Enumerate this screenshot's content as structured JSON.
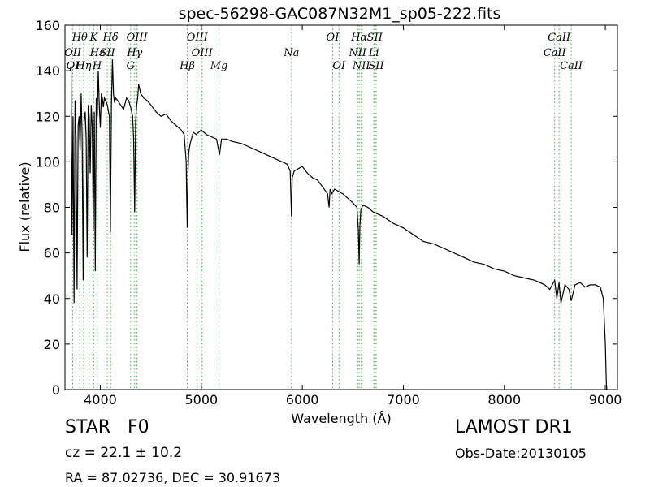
{
  "chart_data": {
    "type": "line",
    "title": "spec-56298-GAC087N32M1_sp05-222.fits",
    "xlabel": "Wavelength (Å)",
    "ylabel": "Flux (relative)",
    "xlim": [
      3650,
      9120
    ],
    "ylim": [
      0,
      160
    ],
    "xticks": [
      4000,
      5000,
      6000,
      7000,
      8000,
      9000
    ],
    "yticks": [
      0,
      20,
      40,
      60,
      80,
      100,
      120,
      140,
      160
    ],
    "grid": false,
    "line_color": "#000000",
    "marker_color": "#44aa44",
    "series": [
      {
        "x": [
          3700,
          3710,
          3720,
          3730,
          3740,
          3750,
          3760,
          3770,
          3780,
          3790,
          3800,
          3810,
          3820,
          3830,
          3840,
          3850,
          3860,
          3870,
          3880,
          3890,
          3900,
          3910,
          3920,
          3930,
          3940,
          3950,
          3960,
          3970,
          3980,
          3990,
          4000,
          4010,
          4020,
          4030,
          4040,
          4050,
          4060,
          4070,
          4080,
          4090,
          4100,
          4110,
          4120,
          4130,
          4140,
          4150,
          4170,
          4200,
          4230,
          4260,
          4280,
          4300,
          4320,
          4330,
          4340,
          4350,
          4360,
          4370,
          4380,
          4400,
          4430,
          4460,
          4500,
          4550,
          4600,
          4650,
          4700,
          4750,
          4800,
          4830,
          4850,
          4855,
          4861,
          4868,
          4875,
          4890,
          4920,
          4950,
          5000,
          5050,
          5100,
          5150,
          5180,
          5200,
          5250,
          5300,
          5400,
          5500,
          5600,
          5700,
          5800,
          5850,
          5880,
          5893,
          5900,
          5920,
          5960,
          6000,
          6050,
          6100,
          6150,
          6200,
          6250,
          6265,
          6275,
          6290,
          6320,
          6360,
          6400,
          6450,
          6500,
          6540,
          6555,
          6563,
          6570,
          6580,
          6600,
          6650,
          6700,
          6750,
          6800,
          6900,
          7000,
          7100,
          7200,
          7300,
          7400,
          7500,
          7600,
          7700,
          7800,
          7900,
          8000,
          8100,
          8200,
          8300,
          8400,
          8450,
          8498,
          8520,
          8542,
          8560,
          8600,
          8640,
          8662,
          8700,
          8750,
          8800,
          8850,
          8900,
          8950,
          8980,
          9000,
          9010,
          9015
        ],
        "y": [
          140,
          142,
          68,
          120,
          38,
          127,
          110,
          44,
          116,
          120,
          105,
          130,
          112,
          48,
          118,
          122,
          110,
          58,
          125,
          120,
          95,
          125,
          115,
          70,
          122,
          52,
          128,
          120,
          140,
          124,
          115,
          130,
          128,
          124,
          128,
          127,
          126,
          125,
          122,
          120,
          69,
          125,
          145,
          130,
          126,
          128,
          127,
          125,
          123,
          128,
          127,
          124,
          120,
          110,
          78,
          118,
          125,
          128,
          134,
          130,
          128,
          127,
          125,
          122,
          120,
          121,
          118,
          116,
          114,
          112,
          100,
          85,
          71,
          95,
          104,
          108,
          113,
          112,
          114,
          112,
          111,
          110,
          103,
          110,
          110,
          109,
          108,
          106,
          104,
          102,
          100,
          99,
          96,
          76,
          93,
          96,
          97,
          98,
          95,
          93,
          92,
          89,
          86,
          80,
          88,
          86,
          88,
          87,
          86,
          84,
          82,
          80,
          70,
          55,
          72,
          79,
          81,
          80,
          78,
          77,
          76,
          73,
          71,
          68,
          65,
          64,
          62,
          60,
          58,
          56,
          55,
          53,
          52,
          50,
          49,
          48,
          46,
          44,
          48,
          40,
          47,
          38,
          46,
          44,
          39,
          46,
          47,
          45,
          46,
          46,
          45,
          40,
          20,
          3,
          0
        ]
      }
    ],
    "lines_top": [
      {
        "label": "Hθ",
        "x": 3797
      },
      {
        "label": "K",
        "x": 3934
      },
      {
        "label": "Hδ",
        "x": 4102
      },
      {
        "label": "OIII",
        "x": 4363
      },
      {
        "label": "OIII",
        "x": 4959
      },
      {
        "label": "OI",
        "x": 6300
      },
      {
        "label": "Hα",
        "x": 6563
      },
      {
        "label": "SII",
        "x": 6717
      },
      {
        "label": "CaII",
        "x": 8542
      }
    ],
    "lines_mid": [
      {
        "label": "OII",
        "x": 3727
      },
      {
        "label": "Hε",
        "x": 3970
      },
      {
        "label": "SII",
        "x": 4069
      },
      {
        "label": "Hγ",
        "x": 4340
      },
      {
        "label": "OIII",
        "x": 5007
      },
      {
        "label": "Na",
        "x": 5893
      },
      {
        "label": "NII",
        "x": 6548
      },
      {
        "label": "Li",
        "x": 6708
      },
      {
        "label": "CaII",
        "x": 8498
      }
    ],
    "lines_low": [
      {
        "label": "OI",
        "x": 3727
      },
      {
        "label": "Hη",
        "x": 3835
      },
      {
        "label": "H",
        "x": 3968
      },
      {
        "label": "G",
        "x": 4300
      },
      {
        "label": "Hβ",
        "x": 4861
      },
      {
        "label": "Mg",
        "x": 5175
      },
      {
        "label": "OI",
        "x": 6363
      },
      {
        "label": "NII",
        "x": 6584
      },
      {
        "label": "SII",
        "x": 6731
      },
      {
        "label": "CaII",
        "x": 8662
      }
    ],
    "marker_x": [
      3727,
      3797,
      3835,
      3889,
      3934,
      3968,
      3970,
      4069,
      4102,
      4300,
      4340,
      4363,
      4861,
      4959,
      5007,
      5175,
      5893,
      6300,
      6363,
      6548,
      6563,
      6584,
      6708,
      6717,
      6731,
      8498,
      8542,
      8662
    ]
  },
  "info": {
    "class": "STAR",
    "subclass": "F0",
    "survey": "LAMOST DR1",
    "cz": "cz = 22.1  ± 10.2",
    "obs_date": "Obs-Date:20130105",
    "coords": "RA = 87.02736, DEC = 30.91673"
  }
}
